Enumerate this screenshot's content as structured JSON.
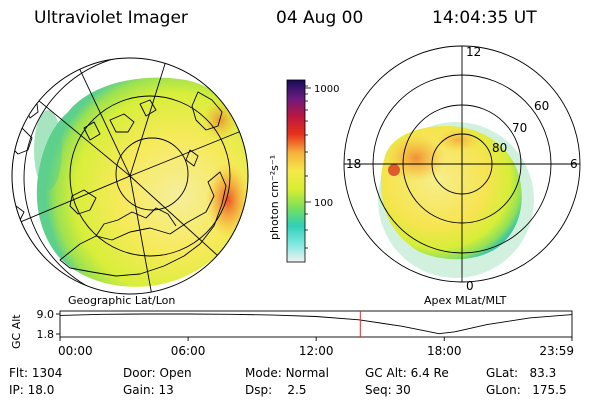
{
  "header": {
    "instrument": "Ultraviolet Imager",
    "date": "04 Aug 00",
    "time": "14:04:35 UT"
  },
  "colors": {
    "aurora_scale": [
      "#f2f2f2",
      "#7de8e0",
      "#2fd0b8",
      "#7ce05a",
      "#d8ee32",
      "#f6e84a",
      "#f6b23c",
      "#e8341c",
      "#bb1640",
      "#6a1a80",
      "#180c5a"
    ],
    "timeline_marker": "#d03030"
  },
  "left_panel": {
    "label": "Geographic Lat/Lon",
    "projection": "geographic polar view with coastlines"
  },
  "right_panel": {
    "label": "Apex MLat/MLT",
    "mlt_labels": [
      "12",
      "18",
      "6",
      "0"
    ],
    "lat_labels": [
      "80",
      "70",
      "60"
    ]
  },
  "colorbar": {
    "unit": "photon cm⁻²s⁻¹",
    "ticks": [
      "1000",
      "100"
    ]
  },
  "timeline": {
    "axis_label": "GC Alt",
    "y_ticks": [
      "9.0",
      "1.8"
    ],
    "x_ticks": [
      "00:00",
      "06:00",
      "12:00",
      "18:00",
      "23:59"
    ],
    "current_time": "14:04"
  },
  "chart_data": {
    "type": "line",
    "title": "GC Alt",
    "xlabel": "",
    "ylabel": "GC Alt",
    "x_range": [
      "00:00",
      "23:59"
    ],
    "ylim": [
      1.8,
      9.0
    ],
    "series": [
      {
        "name": "",
        "x": [
          "00:00",
          "02:00",
          "04:00",
          "06:00",
          "08:00",
          "10:00",
          "12:00",
          "14:00",
          "16:00",
          "17:00",
          "17:45",
          "18:30",
          "20:00",
          "22:00",
          "23:59"
        ],
        "y": [
          8.5,
          8.9,
          9.0,
          9.0,
          8.9,
          8.6,
          8.1,
          6.9,
          4.6,
          3.1,
          1.9,
          2.6,
          5.2,
          7.6,
          8.8
        ]
      }
    ],
    "marker_time": "14:04",
    "grid": false
  },
  "status": {
    "flt_label": "Flt:",
    "flt_value": "1304",
    "ip_label": "IP:",
    "ip_value": "18.0",
    "door_label": "Door:",
    "door_value": "Open",
    "gain_label": "Gain:",
    "gain_value": "13",
    "mode_label": "Mode:",
    "mode_value": "Normal",
    "dsp_label": "Dsp:",
    "dsp_value": "2.5",
    "gcalt_label": "GC Alt:",
    "gcalt_value": "6.4 Re",
    "seq_label": "Seq:",
    "seq_value": "30",
    "glat_label": "GLat:",
    "glat_value": "83.3",
    "glon_label": "GLon:",
    "glon_value": "175.5"
  }
}
